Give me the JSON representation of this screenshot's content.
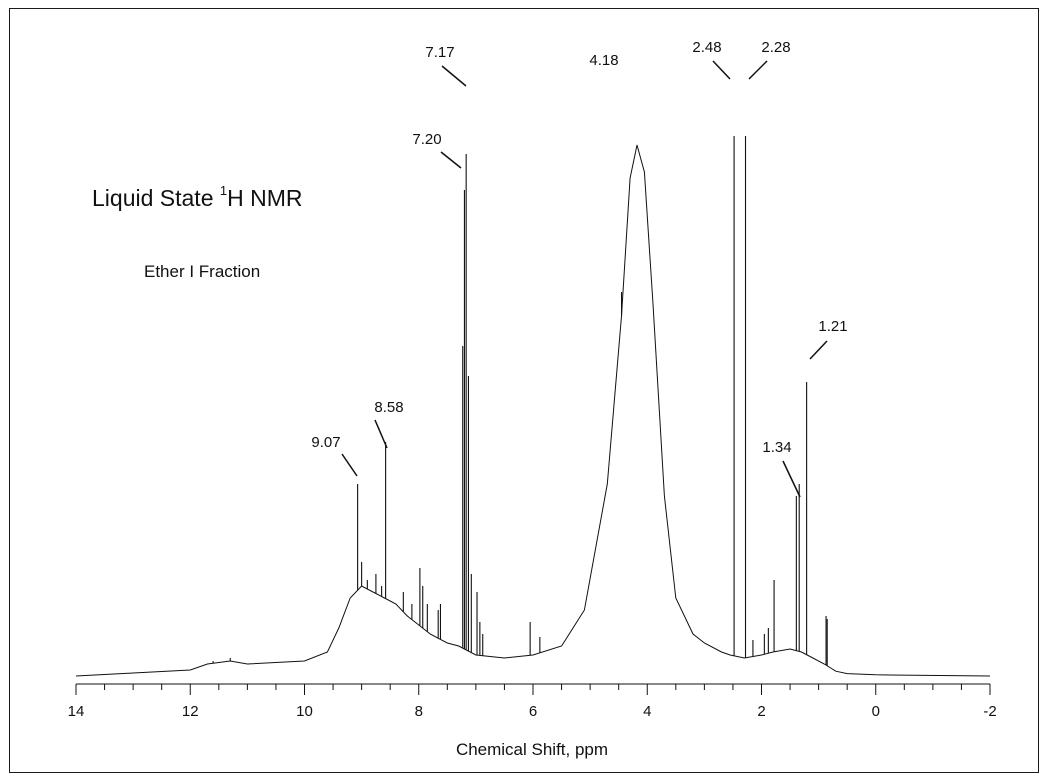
{
  "chart_data": {
    "type": "line",
    "title_main": "Liquid State ",
    "title_sup": "1",
    "title_nucleus": "H NMR",
    "subtitle": "Ether I Fraction",
    "xlabel": "Chemical Shift, ppm",
    "ylabel": "",
    "xlim": [
      14,
      -2
    ],
    "ylim": [
      0,
      1.0
    ],
    "x_reversed": true,
    "grid": false,
    "x_ticks": [
      "14",
      "12",
      "10",
      "8",
      "6",
      "4",
      "2",
      "0",
      "-2"
    ],
    "x_tick_values": [
      14,
      12,
      10,
      8,
      6,
      4,
      2,
      0,
      -2
    ],
    "baseline": [
      [
        14,
        0.0
      ],
      [
        13.0,
        0.005
      ],
      [
        12.0,
        0.01
      ],
      [
        11.7,
        0.02
      ],
      [
        11.3,
        0.025
      ],
      [
        11.0,
        0.02
      ],
      [
        10.0,
        0.025
      ],
      [
        9.6,
        0.04
      ],
      [
        9.4,
        0.08
      ],
      [
        9.2,
        0.13
      ],
      [
        9.0,
        0.15
      ],
      [
        8.8,
        0.14
      ],
      [
        8.6,
        0.13
      ],
      [
        8.4,
        0.12
      ],
      [
        8.2,
        0.1
      ],
      [
        8.0,
        0.085
      ],
      [
        7.8,
        0.07
      ],
      [
        7.5,
        0.055
      ],
      [
        7.3,
        0.05
      ],
      [
        7.0,
        0.035
      ],
      [
        6.5,
        0.03
      ],
      [
        6.0,
        0.035
      ],
      [
        5.5,
        0.05
      ],
      [
        5.1,
        0.11
      ],
      [
        4.7,
        0.32
      ],
      [
        4.45,
        0.6
      ],
      [
        4.3,
        0.83
      ],
      [
        4.18,
        0.885
      ],
      [
        4.05,
        0.84
      ],
      [
        3.9,
        0.62
      ],
      [
        3.7,
        0.3
      ],
      [
        3.5,
        0.13
      ],
      [
        3.2,
        0.07
      ],
      [
        3.0,
        0.055
      ],
      [
        2.7,
        0.04
      ],
      [
        2.55,
        0.035
      ],
      [
        2.3,
        0.03
      ],
      [
        2.0,
        0.035
      ],
      [
        1.8,
        0.04
      ],
      [
        1.5,
        0.045
      ],
      [
        1.3,
        0.04
      ],
      [
        1.1,
        0.03
      ],
      [
        0.9,
        0.02
      ],
      [
        0.7,
        0.008
      ],
      [
        0.5,
        0.004
      ],
      [
        0,
        0.002
      ],
      [
        -2,
        0.0
      ]
    ],
    "peaks": [
      {
        "x": 11.6,
        "y": 0.025
      },
      {
        "x": 11.3,
        "y": 0.03
      },
      {
        "x": 9.07,
        "y": 0.32
      },
      {
        "x": 8.58,
        "y": 0.39
      },
      {
        "x": 9.0,
        "y": 0.19
      },
      {
        "x": 8.9,
        "y": 0.16
      },
      {
        "x": 8.75,
        "y": 0.17
      },
      {
        "x": 8.65,
        "y": 0.15
      },
      {
        "x": 8.27,
        "y": 0.14
      },
      {
        "x": 8.12,
        "y": 0.12
      },
      {
        "x": 7.98,
        "y": 0.18
      },
      {
        "x": 7.93,
        "y": 0.15
      },
      {
        "x": 7.85,
        "y": 0.12
      },
      {
        "x": 7.66,
        "y": 0.11
      },
      {
        "x": 7.62,
        "y": 0.12
      },
      {
        "x": 7.2,
        "y": 0.81
      },
      {
        "x": 7.17,
        "y": 0.87
      },
      {
        "x": 7.23,
        "y": 0.55
      },
      {
        "x": 7.13,
        "y": 0.5
      },
      {
        "x": 7.08,
        "y": 0.17
      },
      {
        "x": 6.98,
        "y": 0.14
      },
      {
        "x": 6.93,
        "y": 0.09
      },
      {
        "x": 6.88,
        "y": 0.07
      },
      {
        "x": 6.05,
        "y": 0.09
      },
      {
        "x": 5.88,
        "y": 0.065
      },
      {
        "x": 4.45,
        "y": 0.64
      },
      {
        "x": 2.48,
        "y": 0.9
      },
      {
        "x": 2.28,
        "y": 0.9
      },
      {
        "x": 2.15,
        "y": 0.06
      },
      {
        "x": 1.95,
        "y": 0.07
      },
      {
        "x": 1.88,
        "y": 0.08
      },
      {
        "x": 1.78,
        "y": 0.16
      },
      {
        "x": 1.39,
        "y": 0.3
      },
      {
        "x": 1.34,
        "y": 0.32
      },
      {
        "x": 1.21,
        "y": 0.49
      },
      {
        "x": 0.87,
        "y": 0.1
      },
      {
        "x": 0.85,
        "y": 0.095
      }
    ],
    "peak_labels": [
      {
        "text": "7.17",
        "x": 7.17
      },
      {
        "text": "7.20",
        "x": 7.2
      },
      {
        "text": "4.18",
        "x": 4.18
      },
      {
        "text": "2.48",
        "x": 2.48
      },
      {
        "text": "2.28",
        "x": 2.28
      },
      {
        "text": "1.21",
        "x": 1.21
      },
      {
        "text": "1.34",
        "x": 1.34
      },
      {
        "text": "8.58",
        "x": 8.58
      },
      {
        "text": "9.07",
        "x": 9.07
      }
    ]
  }
}
